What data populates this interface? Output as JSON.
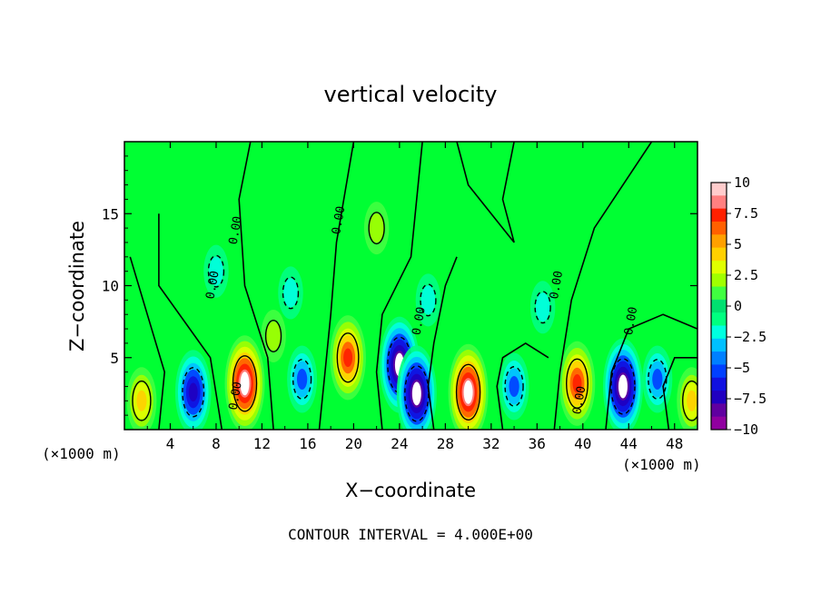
{
  "chart_data": {
    "type": "heatmap",
    "title": "vertical velocity",
    "xlabel": "X−coordinate",
    "ylabel": "Z−coordinate",
    "x_unit_left": "(×1000 m)",
    "x_unit_right": "(×1000 m)",
    "xlim": [
      0,
      50
    ],
    "ylim": [
      0,
      20
    ],
    "x_ticks": [
      4,
      8,
      12,
      16,
      20,
      24,
      28,
      32,
      36,
      40,
      44,
      48
    ],
    "y_ticks": [
      5,
      10,
      15
    ],
    "colorbar": {
      "range": [
        -10,
        10
      ],
      "ticks": [
        "10",
        "7.5",
        "5",
        "2.5",
        "0",
        "−2.5",
        "−5",
        "−7.5",
        "−10"
      ],
      "colors": [
        "#ffcccc",
        "#ff8080",
        "#ff2000",
        "#ff6000",
        "#ffa000",
        "#ffd000",
        "#e0ff00",
        "#a0ff00",
        "#40ff40",
        "#00e070",
        "#00ff80",
        "#00ffe0",
        "#00c0ff",
        "#0080ff",
        "#0040ff",
        "#1010e0",
        "#2000c0",
        "#6000a0",
        "#9000a0"
      ]
    },
    "contour_interval": "4.000E+00",
    "contour_labels": [
      "0.00",
      "0.00",
      "0.00",
      "0.00",
      "0.00",
      "0.00",
      "0.00",
      "0.00"
    ],
    "features": [
      {
        "x": 10.5,
        "z": 3.2,
        "value": 10
      },
      {
        "x": 19.5,
        "z": 5.0,
        "value": 8
      },
      {
        "x": 30.0,
        "z": 2.6,
        "value": 10
      },
      {
        "x": 39.5,
        "z": 3.2,
        "value": 8
      },
      {
        "x": 1.5,
        "z": 2.0,
        "value": 5
      },
      {
        "x": 49.5,
        "z": 2.0,
        "value": 5
      },
      {
        "x": 13.0,
        "z": 6.5,
        "value": 2.5
      },
      {
        "x": 22.0,
        "z": 14.0,
        "value": 2.5
      },
      {
        "x": 6.0,
        "z": 2.6,
        "value": -8
      },
      {
        "x": 15.5,
        "z": 3.5,
        "value": -5
      },
      {
        "x": 24.0,
        "z": 4.5,
        "value": -10
      },
      {
        "x": 25.5,
        "z": 2.5,
        "value": -10
      },
      {
        "x": 34.0,
        "z": 3.0,
        "value": -5
      },
      {
        "x": 43.5,
        "z": 3.0,
        "value": -10
      },
      {
        "x": 46.5,
        "z": 3.5,
        "value": -5
      },
      {
        "x": 14.5,
        "z": 9.5,
        "value": -2.5
      },
      {
        "x": 26.5,
        "z": 9.0,
        "value": -2.5
      },
      {
        "x": 8.0,
        "z": 11.0,
        "value": -2.5
      },
      {
        "x": 36.5,
        "z": 8.5,
        "value": -2.5
      }
    ]
  },
  "footer": {
    "contour_text": "CONTOUR INTERVAL = 4.000E+00"
  },
  "colors": {
    "background": "#00ff33",
    "frame": "#000000"
  }
}
